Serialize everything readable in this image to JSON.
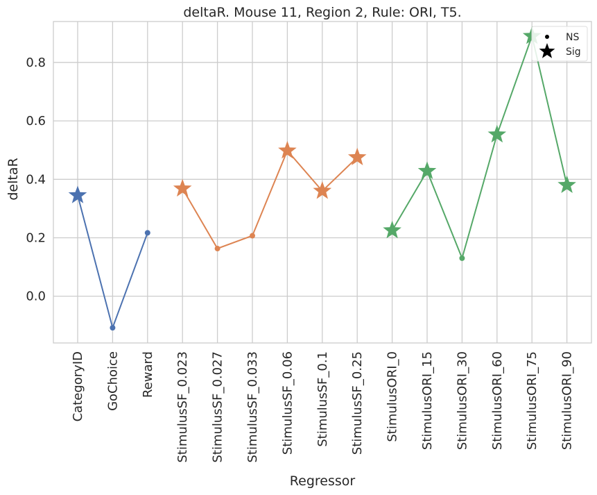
{
  "chart_data": {
    "type": "line",
    "title": "deltaR. Mouse 11, Region 2, Rule: ORI, T5.",
    "xlabel": "Regressor",
    "ylabel": "deltaR",
    "ylim": [
      -0.16,
      0.94
    ],
    "yticks": [
      0.0,
      0.2,
      0.4,
      0.6,
      0.8
    ],
    "ytick_labels": [
      "0.0",
      "0.2",
      "0.4",
      "0.6",
      "0.8"
    ],
    "grid": true,
    "legend_position": "top-right",
    "legend": [
      {
        "label": "NS",
        "marker": "dot"
      },
      {
        "label": "Sig",
        "marker": "star"
      }
    ],
    "categories": [
      "CategoryID",
      "GoChoice",
      "Reward",
      "StimulusSF_0.023",
      "StimulusSF_0.027",
      "StimulusSF_0.033",
      "StimulusSF_0.06",
      "StimulusSF_0.1",
      "StimulusSF_0.25",
      "StimulusORI_0",
      "StimulusORI_15",
      "StimulusORI_30",
      "StimulusORI_60",
      "StimulusORI_75",
      "StimulusORI_90"
    ],
    "series": [
      {
        "color": "#4c72b0",
        "points": [
          {
            "x": "CategoryID",
            "y": 0.345,
            "sig": true
          },
          {
            "x": "GoChoice",
            "y": -0.108,
            "sig": false
          },
          {
            "x": "Reward",
            "y": 0.217,
            "sig": false
          }
        ]
      },
      {
        "color": "#dd8452",
        "points": [
          {
            "x": "StimulusSF_0.023",
            "y": 0.368,
            "sig": true
          },
          {
            "x": "StimulusSF_0.027",
            "y": 0.163,
            "sig": false
          },
          {
            "x": "StimulusSF_0.033",
            "y": 0.207,
            "sig": false
          },
          {
            "x": "StimulusSF_0.06",
            "y": 0.498,
            "sig": true
          },
          {
            "x": "StimulusSF_0.1",
            "y": 0.36,
            "sig": true
          },
          {
            "x": "StimulusSF_0.25",
            "y": 0.475,
            "sig": true
          }
        ]
      },
      {
        "color": "#55a868",
        "points": [
          {
            "x": "StimulusORI_0",
            "y": 0.225,
            "sig": true
          },
          {
            "x": "StimulusORI_15",
            "y": 0.428,
            "sig": true
          },
          {
            "x": "StimulusORI_30",
            "y": 0.13,
            "sig": false
          },
          {
            "x": "StimulusORI_60",
            "y": 0.553,
            "sig": true
          },
          {
            "x": "StimulusORI_75",
            "y": 0.89,
            "sig": true
          },
          {
            "x": "StimulusORI_90",
            "y": 0.38,
            "sig": true
          }
        ]
      }
    ]
  }
}
